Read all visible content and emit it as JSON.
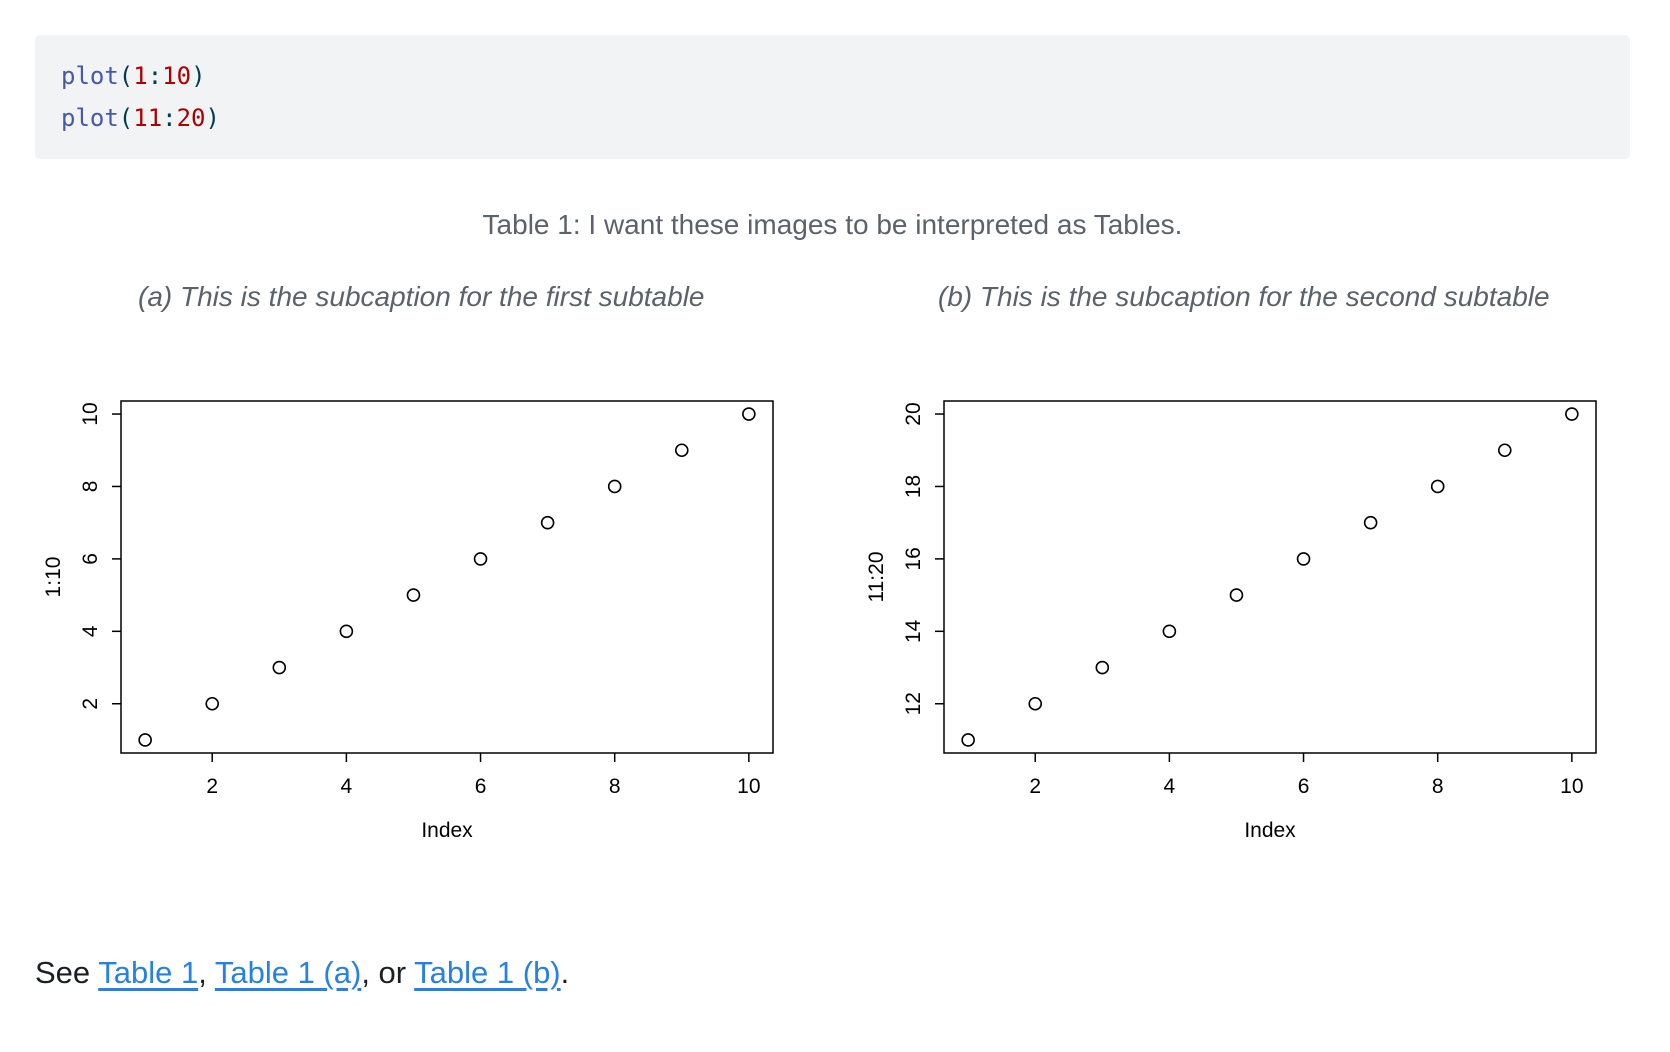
{
  "colors": {
    "code_background": "#f1f3f5",
    "code_function": "#4758ab",
    "code_number": "#ad0000",
    "code_paren": "#003b4f",
    "caption_text": "#5a626b",
    "link": "#2780e3",
    "body_text": "#1b1f23",
    "plot_ink": "#000000"
  },
  "code_block": {
    "language": "r",
    "lines": [
      [
        {
          "text": "plot",
          "type": "function"
        },
        {
          "text": "(",
          "type": "paren"
        },
        {
          "text": "1",
          "type": "number"
        },
        {
          "text": ":",
          "type": "paren"
        },
        {
          "text": "10",
          "type": "number"
        },
        {
          "text": ")",
          "type": "paren"
        }
      ],
      [
        {
          "text": "plot",
          "type": "function"
        },
        {
          "text": "(",
          "type": "paren"
        },
        {
          "text": "11",
          "type": "number"
        },
        {
          "text": ":",
          "type": "paren"
        },
        {
          "text": "20",
          "type": "number"
        },
        {
          "text": ")",
          "type": "paren"
        }
      ]
    ]
  },
  "table_caption": "Table 1: I want these images to be interpreted as Tables.",
  "subtables": [
    {
      "caption": "(a) This is the subcaption for the first subtable"
    },
    {
      "caption": "(b) This is the subcaption for the second subtable"
    }
  ],
  "chart_data": [
    {
      "type": "scatter",
      "title": "",
      "x": [
        1,
        2,
        3,
        4,
        5,
        6,
        7,
        8,
        9,
        10
      ],
      "y": [
        1,
        2,
        3,
        4,
        5,
        6,
        7,
        8,
        9,
        10
      ],
      "xlabel": "Index",
      "ylabel": "1:10",
      "xticks": [
        2,
        4,
        6,
        8,
        10
      ],
      "yticks": [
        2,
        4,
        6,
        8,
        10
      ],
      "xlim": [
        0.64,
        10.36
      ],
      "ylim": [
        0.64,
        10.36
      ],
      "marker": "open-circle",
      "grid": false,
      "legend": "none",
      "box": "full-frame"
    },
    {
      "type": "scatter",
      "title": "",
      "x": [
        1,
        2,
        3,
        4,
        5,
        6,
        7,
        8,
        9,
        10
      ],
      "y": [
        11,
        12,
        13,
        14,
        15,
        16,
        17,
        18,
        19,
        20
      ],
      "xlabel": "Index",
      "ylabel": "11:20",
      "xticks": [
        2,
        4,
        6,
        8,
        10
      ],
      "yticks": [
        12,
        14,
        16,
        18,
        20
      ],
      "xlim": [
        0.64,
        10.36
      ],
      "ylim": [
        10.64,
        20.36
      ],
      "marker": "open-circle",
      "grid": false,
      "legend": "none",
      "box": "full-frame"
    }
  ],
  "footer": {
    "parts": [
      {
        "type": "text",
        "text": "See "
      },
      {
        "type": "link",
        "text": "Table 1"
      },
      {
        "type": "text",
        "text": ", "
      },
      {
        "type": "link",
        "text": "Table 1 (a)"
      },
      {
        "type": "text",
        "text": ", or "
      },
      {
        "type": "link",
        "text": "Table 1 (b)"
      },
      {
        "type": "text",
        "text": "."
      }
    ]
  }
}
